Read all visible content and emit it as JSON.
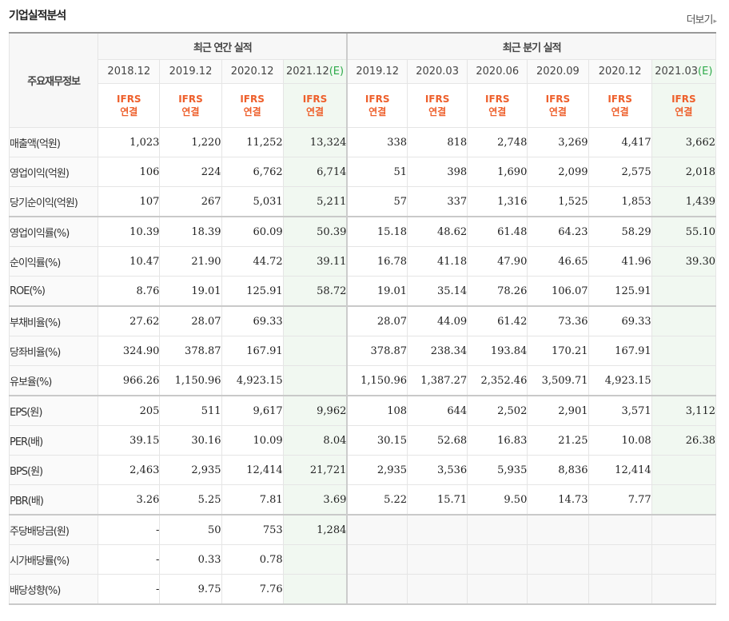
{
  "header": {
    "title": "기업실적분석",
    "more_label": "더보기",
    "more_icon": "chevron-right-icon"
  },
  "table": {
    "corner_label": "주요재무정보",
    "annual_group": "최근 연간 실적",
    "quarter_group": "최근 분기 실적",
    "periods": [
      {
        "date": "2018.12",
        "est": "",
        "ifrs1": "IFRS",
        "ifrs2": "연결"
      },
      {
        "date": "2019.12",
        "est": "",
        "ifrs1": "IFRS",
        "ifrs2": "연결"
      },
      {
        "date": "2020.12",
        "est": "",
        "ifrs1": "IFRS",
        "ifrs2": "연결"
      },
      {
        "date": "2021.12",
        "est": "(E)",
        "ifrs1": "IFRS",
        "ifrs2": "연결"
      },
      {
        "date": "2019.12",
        "est": "",
        "ifrs1": "IFRS",
        "ifrs2": "연결"
      },
      {
        "date": "2020.03",
        "est": "",
        "ifrs1": "IFRS",
        "ifrs2": "연결"
      },
      {
        "date": "2020.06",
        "est": "",
        "ifrs1": "IFRS",
        "ifrs2": "연결"
      },
      {
        "date": "2020.09",
        "est": "",
        "ifrs1": "IFRS",
        "ifrs2": "연결"
      },
      {
        "date": "2020.12",
        "est": "",
        "ifrs1": "IFRS",
        "ifrs2": "연결"
      },
      {
        "date": "2021.03",
        "est": "(E)",
        "ifrs1": "IFRS",
        "ifrs2": "연결"
      }
    ],
    "rows": [
      {
        "label": "매출액(억원)",
        "values": [
          "1,023",
          "1,220",
          "11,252",
          "13,324",
          "338",
          "818",
          "2,748",
          "3,269",
          "4,417",
          "3,662"
        ]
      },
      {
        "label": "영업이익(억원)",
        "values": [
          "106",
          "224",
          "6,762",
          "6,714",
          "51",
          "398",
          "1,690",
          "2,099",
          "2,575",
          "2,018"
        ]
      },
      {
        "label": "당기순이익(억원)",
        "values": [
          "107",
          "267",
          "5,031",
          "5,211",
          "57",
          "337",
          "1,316",
          "1,525",
          "1,853",
          "1,439"
        ]
      },
      {
        "label": "영업이익률(%)",
        "values": [
          "10.39",
          "18.39",
          "60.09",
          "50.39",
          "15.18",
          "48.62",
          "61.48",
          "64.23",
          "58.29",
          "55.10"
        ]
      },
      {
        "label": "순이익률(%)",
        "values": [
          "10.47",
          "21.90",
          "44.72",
          "39.11",
          "16.78",
          "41.18",
          "47.90",
          "46.65",
          "41.96",
          "39.30"
        ]
      },
      {
        "label": "ROE(%)",
        "values": [
          "8.76",
          "19.01",
          "125.91",
          "58.72",
          "19.01",
          "35.14",
          "78.26",
          "106.07",
          "125.91",
          ""
        ]
      },
      {
        "label": "부채비율(%)",
        "values": [
          "27.62",
          "28.07",
          "69.33",
          "",
          "28.07",
          "44.09",
          "61.42",
          "73.36",
          "69.33",
          ""
        ]
      },
      {
        "label": "당좌비율(%)",
        "values": [
          "324.90",
          "378.87",
          "167.91",
          "",
          "378.87",
          "238.34",
          "193.84",
          "170.21",
          "167.91",
          ""
        ]
      },
      {
        "label": "유보율(%)",
        "values": [
          "966.26",
          "1,150.96",
          "4,923.15",
          "",
          "1,150.96",
          "1,387.27",
          "2,352.46",
          "3,509.71",
          "4,923.15",
          ""
        ]
      },
      {
        "label": "EPS(원)",
        "values": [
          "205",
          "511",
          "9,617",
          "9,962",
          "108",
          "644",
          "2,502",
          "2,901",
          "3,571",
          "3,112"
        ]
      },
      {
        "label": "PER(배)",
        "values": [
          "39.15",
          "30.16",
          "10.09",
          "8.04",
          "30.15",
          "52.68",
          "16.83",
          "21.25",
          "10.08",
          "26.38"
        ]
      },
      {
        "label": "BPS(원)",
        "values": [
          "2,463",
          "2,935",
          "12,414",
          "21,721",
          "2,935",
          "3,536",
          "5,935",
          "8,836",
          "12,414",
          ""
        ]
      },
      {
        "label": "PBR(배)",
        "values": [
          "3.26",
          "5.25",
          "7.81",
          "3.69",
          "5.22",
          "15.71",
          "9.50",
          "14.73",
          "7.77",
          ""
        ]
      },
      {
        "label": "주당배당금(원)",
        "values": [
          "-",
          "50",
          "753",
          "1,284",
          "",
          "",
          "",
          "",
          "",
          ""
        ]
      },
      {
        "label": "시가배당률(%)",
        "values": [
          "-",
          "0.33",
          "0.78",
          "",
          "",
          "",
          "",
          "",
          "",
          ""
        ]
      },
      {
        "label": "배당성향(%)",
        "values": [
          "-",
          "9.75",
          "7.76",
          "",
          "",
          "",
          "",
          "",
          "",
          ""
        ]
      }
    ]
  },
  "colors": {
    "ifrs": "#ee5f2b",
    "estimate_bg": "#f1f8f1",
    "estimate_mark": "#2eaa4a"
  }
}
